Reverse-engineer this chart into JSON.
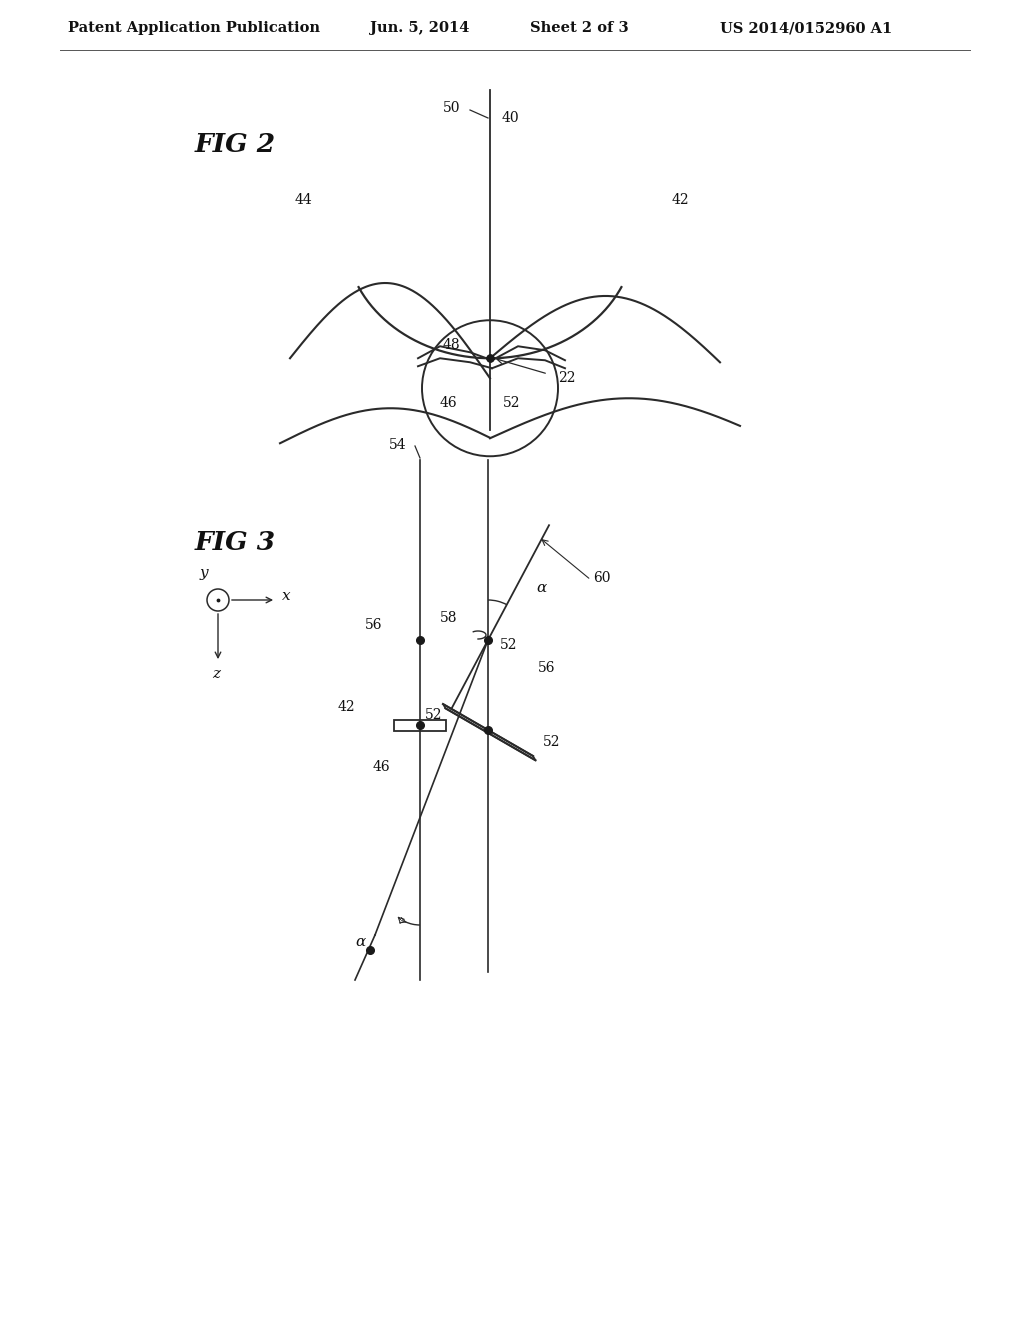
{
  "bg_color": "#ffffff",
  "line_color": "#2a2a2a",
  "dot_color": "#1a1a1a",
  "header_text": "Patent Application Publication",
  "header_date": "Jun. 5, 2014",
  "header_sheet": "Sheet 2 of 3",
  "header_patent": "US 2014/0152960 A1",
  "fig2_label": "FIG 2",
  "fig3_label": "FIG 3"
}
